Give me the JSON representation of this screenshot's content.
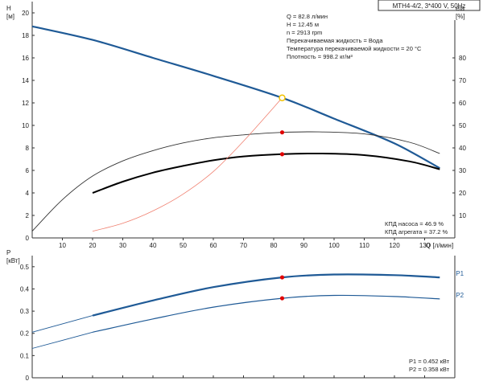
{
  "chart_data": [
    {
      "type": "line",
      "title": "MTH4-4/2, 3*400 V, 50Hz",
      "y_axis_left": {
        "label": "H",
        "unit": "[м]",
        "lim": [
          0,
          21
        ],
        "ticks": [
          "0",
          "2",
          "4",
          "6",
          "8",
          "10",
          "12",
          "14",
          "16",
          "18",
          "20"
        ]
      },
      "y_axis_right": {
        "label": "eta",
        "unit": "[%]",
        "lim": [
          0,
          105
        ],
        "ticks": [
          "10",
          "20",
          "30",
          "40",
          "50",
          "60",
          "70",
          "80"
        ]
      },
      "x_axis": {
        "label": "Q [л/мин]",
        "lim": [
          0,
          140
        ],
        "ticks": [
          "10",
          "20",
          "30",
          "40",
          "50",
          "60",
          "70",
          "80",
          "90",
          "100",
          "110",
          "120",
          "130"
        ]
      },
      "info_lines": [
        "Q = 82.8 л/мин",
        "H = 12.45 м",
        "n = 2913 rpm",
        "Перекачиваемая жидкость = Вода",
        "Температура перекачиваемой жидкости = 20 °C",
        "Плотность = 998.2 кг/м³"
      ],
      "efficiency_notes": [
        "КПД насоса = 46.9 %",
        "КПД агрегата = 37.2 %"
      ],
      "series": [
        {
          "color": "#1f5a96",
          "x": [
            0,
            20,
            40,
            60,
            82.8,
            100,
            120,
            135
          ],
          "y": [
            18.8,
            17.6,
            16.0,
            14.4,
            12.45,
            10.6,
            8.4,
            6.2
          ]
        },
        {
          "color": "#333333",
          "x": [
            0,
            10,
            20,
            30,
            40,
            50,
            60,
            70,
            82.8,
            95,
            110,
            125,
            135
          ],
          "y": [
            3,
            17,
            27.5,
            34.2,
            38.8,
            42.2,
            44.5,
            45.8,
            46.9,
            47.1,
            46.2,
            42.5,
            37.5
          ]
        },
        {
          "color": "#000000",
          "x": [
            20,
            30,
            40,
            50,
            60,
            70,
            82.8,
            95,
            110,
            125,
            135
          ],
          "y": [
            20,
            25,
            29,
            32,
            34.5,
            36.2,
            37.2,
            37.5,
            36.8,
            34,
            30.5
          ]
        },
        {
          "color": "#f08070",
          "x": [
            20,
            30,
            40,
            50,
            60,
            70,
            82.8
          ],
          "y": [
            0.6,
            1.3,
            2.4,
            3.9,
            5.9,
            8.6,
            12.45
          ]
        }
      ],
      "operating_points": [
        {
          "x": 82.8,
          "y": 12.45,
          "color": "#f2c200"
        },
        {
          "x": 82.8,
          "y": 9.38,
          "color": "#e00000"
        },
        {
          "x": 82.8,
          "y": 7.44,
          "color": "#e00000"
        }
      ]
    },
    {
      "type": "line",
      "y_axis": {
        "label": "P",
        "unit": "[кВт]",
        "lim": [
          0,
          0.55
        ],
        "ticks": [
          "0",
          "0.1",
          "0.2",
          "0.3",
          "0.4",
          "0.5"
        ]
      },
      "x_lim": [
        0,
        140
      ],
      "values_text": [
        "P1 = 0.452 кВт",
        "P2 = 0.358 кВт"
      ],
      "series": [
        {
          "name": "P1",
          "color": "#1f5a96",
          "x": [
            0,
            20,
            40,
            60,
            82.8,
            100,
            120,
            135
          ],
          "y": [
            0.205,
            0.28,
            0.348,
            0.408,
            0.452,
            0.465,
            0.462,
            0.452
          ]
        },
        {
          "name": "P2",
          "color": "#1f5a96",
          "x": [
            0,
            20,
            40,
            60,
            82.8,
            100,
            120,
            135
          ],
          "y": [
            0.132,
            0.205,
            0.265,
            0.318,
            0.358,
            0.371,
            0.366,
            0.355
          ]
        }
      ],
      "operating_points": [
        {
          "x": 82.8,
          "y": 0.452,
          "color": "#e00000"
        },
        {
          "x": 82.8,
          "y": 0.358,
          "color": "#e00000"
        }
      ]
    }
  ]
}
